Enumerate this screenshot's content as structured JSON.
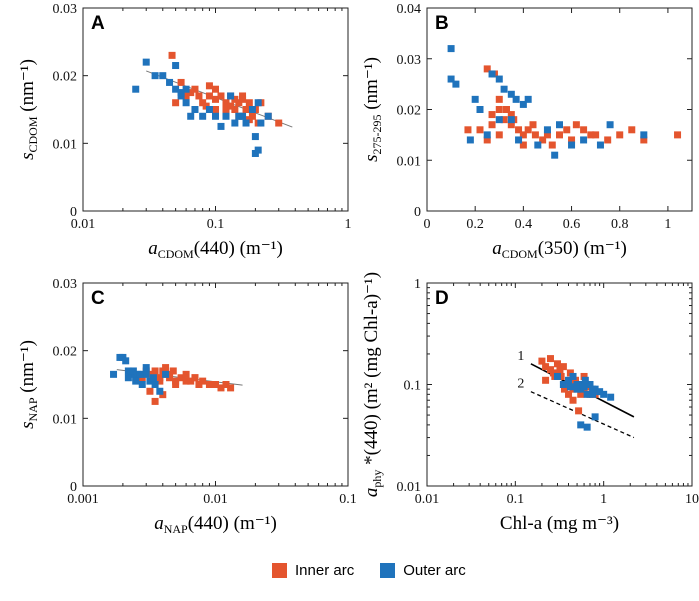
{
  "colors": {
    "inner": "#E4552E",
    "outer": "#1F73BC"
  },
  "legend": {
    "inner": "Inner arc",
    "outer": "Outer arc"
  },
  "chart_data": [
    {
      "panel": "A",
      "type": "scatter",
      "xscale": "log",
      "xlim": [
        0.01,
        1
      ],
      "ylim": [
        0,
        0.03
      ],
      "xticks": [
        "0.01",
        "0.1",
        "1"
      ],
      "yticks": [
        "0",
        "0.01",
        "0.02",
        "0.03"
      ],
      "ylabel": "s",
      "ylabel_sub": "CDOM",
      "ylabel_unit": "(nm⁻¹)",
      "xlabel": "a",
      "xlabel_sub": "CDOM",
      "xlabel_tail": "(440) (m⁻¹)",
      "fit_lines": [
        {
          "x": [
            0.03,
            0.38
          ],
          "y": [
            0.0207,
            0.0124
          ],
          "style": "gray"
        }
      ],
      "series": [
        {
          "name": "Inner arc",
          "x": [
            0.047,
            0.055,
            0.06,
            0.05,
            0.07,
            0.075,
            0.08,
            0.09,
            0.1,
            0.1,
            0.11,
            0.12,
            0.12,
            0.13,
            0.14,
            0.15,
            0.15,
            0.16,
            0.17,
            0.18,
            0.19,
            0.2,
            0.21,
            0.22,
            0.25,
            0.3,
            0.09,
            0.065,
            0.13,
            0.16,
            0.1,
            0.085,
            0.14,
            0.18,
            0.12,
            0.07
          ],
          "y": [
            0.023,
            0.019,
            0.017,
            0.016,
            0.018,
            0.017,
            0.016,
            0.017,
            0.018,
            0.015,
            0.017,
            0.016,
            0.015,
            0.017,
            0.015,
            0.016,
            0.014,
            0.017,
            0.015,
            0.016,
            0.014,
            0.015,
            0.013,
            0.016,
            0.014,
            0.013,
            0.0185,
            0.0175,
            0.0155,
            0.0165,
            0.0165,
            0.0155,
            0.0165,
            0.0135,
            0.0145,
            0.015
          ]
        },
        {
          "name": "Outer arc",
          "x": [
            0.025,
            0.03,
            0.035,
            0.04,
            0.045,
            0.05,
            0.055,
            0.06,
            0.065,
            0.07,
            0.08,
            0.09,
            0.1,
            0.12,
            0.14,
            0.15,
            0.17,
            0.19,
            0.2,
            0.22,
            0.2,
            0.21,
            0.25,
            0.21,
            0.16,
            0.13,
            0.06,
            0.11,
            0.05,
            0.055
          ],
          "y": [
            0.018,
            0.022,
            0.02,
            0.02,
            0.019,
            0.018,
            0.017,
            0.016,
            0.014,
            0.015,
            0.014,
            0.015,
            0.014,
            0.014,
            0.013,
            0.014,
            0.013,
            0.015,
            0.011,
            0.013,
            0.0085,
            0.009,
            0.014,
            0.016,
            0.014,
            0.017,
            0.018,
            0.0125,
            0.0215,
            0.0175
          ]
        }
      ]
    },
    {
      "panel": "B",
      "type": "scatter",
      "xscale": "linear",
      "xlim": [
        0,
        1.1
      ],
      "ylim": [
        0,
        0.04
      ],
      "xticks": [
        "0",
        "0.2",
        "0.4",
        "0.6",
        "0.8",
        "1"
      ],
      "yticks": [
        "0",
        "0.01",
        "0.02",
        "0.03",
        "0.04"
      ],
      "ylabel": "s",
      "ylabel_sub": "275-295",
      "ylabel_unit": "(nm⁻¹)",
      "xlabel": "a",
      "xlabel_sub": "CDOM",
      "xlabel_tail": "(350) (m⁻¹)",
      "fit_lines": [],
      "series": [
        {
          "name": "Inner arc",
          "x": [
            0.25,
            0.28,
            0.3,
            0.32,
            0.27,
            0.33,
            0.35,
            0.38,
            0.4,
            0.42,
            0.45,
            0.48,
            0.5,
            0.52,
            0.55,
            0.58,
            0.6,
            0.62,
            0.65,
            0.68,
            0.7,
            0.75,
            0.8,
            0.85,
            0.9,
            1.04,
            0.3,
            0.35,
            0.4,
            0.22,
            0.25,
            0.3,
            0.36,
            0.44,
            0.17,
            0.27
          ],
          "y": [
            0.028,
            0.027,
            0.022,
            0.018,
            0.017,
            0.02,
            0.017,
            0.016,
            0.015,
            0.016,
            0.015,
            0.014,
            0.015,
            0.013,
            0.015,
            0.016,
            0.014,
            0.017,
            0.016,
            0.015,
            0.015,
            0.014,
            0.015,
            0.016,
            0.014,
            0.015,
            0.02,
            0.019,
            0.013,
            0.016,
            0.014,
            0.015,
            0.018,
            0.017,
            0.016,
            0.019
          ]
        },
        {
          "name": "Outer arc",
          "x": [
            0.1,
            0.1,
            0.12,
            0.18,
            0.2,
            0.22,
            0.27,
            0.3,
            0.32,
            0.35,
            0.37,
            0.4,
            0.42,
            0.3,
            0.35,
            0.25,
            0.5,
            0.53,
            0.55,
            0.6,
            0.65,
            0.72,
            0.76,
            0.9,
            0.46,
            0.38
          ],
          "y": [
            0.032,
            0.026,
            0.025,
            0.014,
            0.022,
            0.02,
            0.027,
            0.026,
            0.024,
            0.023,
            0.022,
            0.021,
            0.022,
            0.018,
            0.018,
            0.015,
            0.016,
            0.011,
            0.017,
            0.013,
            0.014,
            0.013,
            0.017,
            0.015,
            0.013,
            0.014
          ]
        }
      ]
    },
    {
      "panel": "C",
      "type": "scatter",
      "xscale": "log",
      "xlim": [
        0.001,
        0.1
      ],
      "ylim": [
        0,
        0.03
      ],
      "xticks": [
        "0.001",
        "0.01",
        "0.1"
      ],
      "yticks": [
        "0",
        "0.01",
        "0.02",
        "0.03"
      ],
      "ylabel": "s",
      "ylabel_sub": "NAP",
      "ylabel_unit": "(nm⁻¹)",
      "xlabel": "a",
      "xlabel_sub": "NAP",
      "xlabel_tail": "(440) (m⁻¹)",
      "fit_lines": [
        {
          "x": [
            0.0018,
            0.016
          ],
          "y": [
            0.0172,
            0.0149
          ],
          "style": "gray"
        }
      ],
      "series": [
        {
          "name": "Inner arc",
          "x": [
            0.0028,
            0.003,
            0.0032,
            0.0035,
            0.0038,
            0.004,
            0.0042,
            0.0045,
            0.0048,
            0.005,
            0.0055,
            0.006,
            0.0065,
            0.007,
            0.0075,
            0.008,
            0.009,
            0.01,
            0.011,
            0.012,
            0.013,
            0.0035,
            0.004,
            0.005,
            0.0045,
            0.0032,
            0.0038,
            0.006,
            0.007,
            0.0042
          ],
          "y": [
            0.016,
            0.017,
            0.0165,
            0.017,
            0.016,
            0.017,
            0.0165,
            0.016,
            0.017,
            0.0155,
            0.016,
            0.0165,
            0.0155,
            0.016,
            0.015,
            0.0155,
            0.015,
            0.015,
            0.0145,
            0.015,
            0.0145,
            0.0125,
            0.0135,
            0.015,
            0.0165,
            0.014,
            0.0155,
            0.0155,
            0.016,
            0.0175
          ]
        },
        {
          "name": "Outer arc",
          "x": [
            0.0017,
            0.0019,
            0.002,
            0.0021,
            0.0022,
            0.0023,
            0.0024,
            0.0025,
            0.0026,
            0.0028,
            0.003,
            0.0032,
            0.0035,
            0.0038,
            0.0022,
            0.0025,
            0.0027,
            0.003,
            0.0042,
            0.0034
          ],
          "y": [
            0.0165,
            0.019,
            0.019,
            0.0185,
            0.017,
            0.0165,
            0.017,
            0.016,
            0.0165,
            0.015,
            0.0165,
            0.0155,
            0.015,
            0.014,
            0.016,
            0.0155,
            0.0165,
            0.0175,
            0.0165,
            0.016
          ]
        }
      ]
    },
    {
      "panel": "D",
      "type": "scatter",
      "xscale": "log",
      "yscale": "log",
      "xlim": [
        0.01,
        10
      ],
      "ylim": [
        0.01,
        1
      ],
      "xticks": [
        "0.01",
        "0.1",
        "1",
        "10"
      ],
      "yticks": [
        "0.01",
        "0.1",
        "1"
      ],
      "ylabel": "a",
      "ylabel_sub": "phy",
      "ylabel_unit": "*(440) (m² (mg Chl-a)⁻¹)",
      "xlabel": "Chl-a (mg m⁻³)",
      "xlabel_sub": "",
      "xlabel_tail": "",
      "line_labels": [
        "1",
        "2"
      ],
      "fit_lines": [
        {
          "x": [
            0.15,
            2.2
          ],
          "y": [
            0.16,
            0.048
          ],
          "style": "solid"
        },
        {
          "x": [
            0.15,
            2.2
          ],
          "y": [
            0.085,
            0.03
          ],
          "style": "dashed"
        }
      ],
      "series": [
        {
          "name": "Inner arc",
          "x": [
            0.2,
            0.22,
            0.25,
            0.27,
            0.3,
            0.32,
            0.35,
            0.22,
            0.28,
            0.38,
            0.42,
            0.45,
            0.5,
            0.55,
            0.6,
            0.65,
            0.7,
            0.8,
            0.25,
            0.33,
            0.48,
            0.4,
            0.36,
            0.52,
            0.3,
            0.45,
            0.5,
            0.6
          ],
          "y": [
            0.17,
            0.15,
            0.18,
            0.13,
            0.16,
            0.14,
            0.15,
            0.11,
            0.12,
            0.1,
            0.13,
            0.09,
            0.1,
            0.08,
            0.09,
            0.095,
            0.08,
            0.08,
            0.14,
            0.12,
            0.11,
            0.08,
            0.09,
            0.055,
            0.13,
            0.07,
            0.1,
            0.12
          ]
        },
        {
          "name": "Outer arc",
          "x": [
            0.3,
            0.35,
            0.4,
            0.45,
            0.5,
            0.55,
            0.6,
            0.65,
            0.7,
            0.75,
            0.8,
            0.9,
            1,
            1.2,
            0.42,
            0.5,
            0.58,
            0.55,
            0.65,
            0.8,
            0.62,
            0.75
          ],
          "y": [
            0.12,
            0.1,
            0.11,
            0.12,
            0.1,
            0.09,
            0.095,
            0.08,
            0.1,
            0.08,
            0.09,
            0.085,
            0.08,
            0.075,
            0.095,
            0.09,
            0.1,
            0.04,
            0.038,
            0.048,
            0.11,
            0.09
          ]
        }
      ]
    }
  ]
}
